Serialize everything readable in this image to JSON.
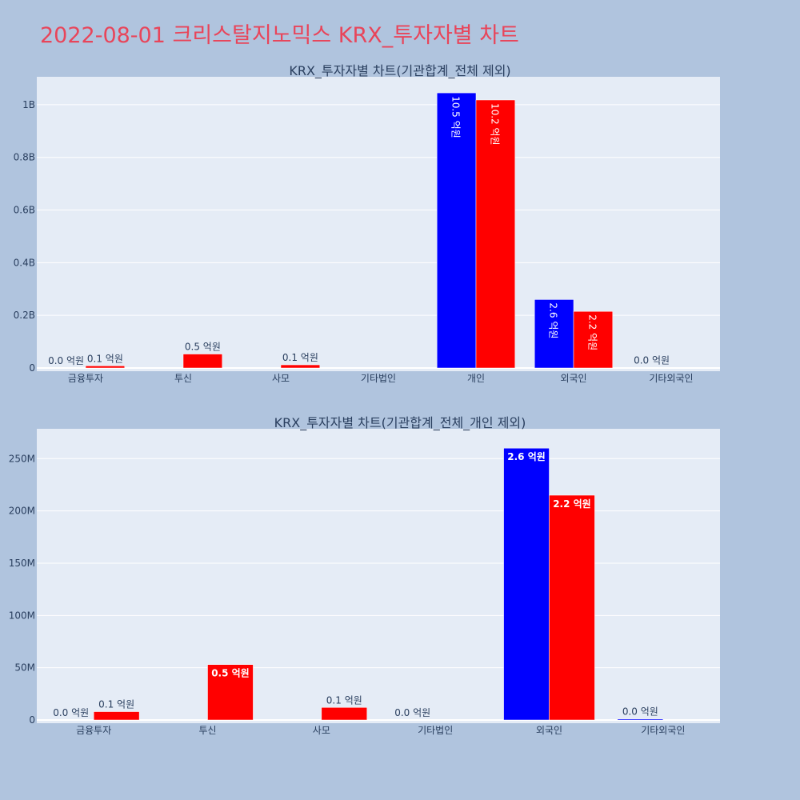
{
  "title": "2022-08-01 크리스탈지노믹스 KRX_투자자별 차트",
  "colors": {
    "buy": "#0000ff",
    "sell": "#ff0000",
    "plot_bg": "#e5ecf6",
    "page_bg": "#b0c4de"
  },
  "chart_data": [
    {
      "type": "bar",
      "title": "KRX_투자자별 차트(기관합계_전체 제외)",
      "categories": [
        "금융투자",
        "투신",
        "사모",
        "기타법인",
        "개인",
        "외국인",
        "기타외국인"
      ],
      "series": [
        {
          "color": "#0000ff",
          "values": [
            0,
            0,
            0,
            0,
            1045000000,
            260000000,
            1000000
          ]
        },
        {
          "color": "#ff0000",
          "values": [
            8000000,
            53000000,
            12000000,
            0,
            1018000000,
            215000000,
            0
          ]
        }
      ],
      "labels": [
        [
          {
            "text": "0.0 억원",
            "pos": "outside"
          },
          null,
          null,
          null,
          {
            "text": "10.5 억원",
            "pos": "inside-rot"
          },
          {
            "text": "2.6 억원",
            "pos": "inside-rot"
          },
          {
            "text": "0.0 억원",
            "pos": "outside"
          }
        ],
        [
          {
            "text": "0.1 억원",
            "pos": "outside"
          },
          {
            "text": "0.5 억원",
            "pos": "outside"
          },
          {
            "text": "0.1 억원",
            "pos": "outside"
          },
          null,
          {
            "text": "10.2 억원",
            "pos": "inside-rot"
          },
          {
            "text": "2.2 억원",
            "pos": "inside-rot"
          },
          null
        ]
      ],
      "yticks": [
        0,
        200000000,
        400000000,
        600000000,
        800000000,
        1000000000
      ],
      "ytick_labels": [
        "0",
        "0.2B",
        "0.4B",
        "0.6B",
        "0.8B",
        "1B"
      ],
      "ylim": [
        0,
        1100000000
      ],
      "grid": true
    },
    {
      "type": "bar",
      "title": "KRX_투자자별 차트(기관합계_전체_개인 제외)",
      "categories": [
        "금융투자",
        "투신",
        "사모",
        "기타법인",
        "외국인",
        "기타외국인"
      ],
      "series": [
        {
          "color": "#0000ff",
          "values": [
            0,
            0,
            0,
            0,
            260000000,
            1000000
          ]
        },
        {
          "color": "#ff0000",
          "values": [
            8000000,
            53000000,
            12000000,
            0,
            215000000,
            0
          ]
        }
      ],
      "labels": [
        [
          {
            "text": "0.0 억원",
            "pos": "outside"
          },
          null,
          null,
          {
            "text": "0.0 억원",
            "pos": "outside"
          },
          {
            "text": "2.6 억원",
            "pos": "inside"
          },
          {
            "text": "0.0 억원",
            "pos": "outside"
          }
        ],
        [
          {
            "text": "0.1 억원",
            "pos": "outside"
          },
          {
            "text": "0.5 억원",
            "pos": "inside"
          },
          {
            "text": "0.1 억원",
            "pos": "outside"
          },
          null,
          {
            "text": "2.2 억원",
            "pos": "inside"
          },
          null
        ]
      ],
      "yticks": [
        0,
        50000000,
        100000000,
        150000000,
        200000000,
        250000000
      ],
      "ytick_labels": [
        "0",
        "50M",
        "100M",
        "150M",
        "200M",
        "250M"
      ],
      "ylim": [
        0,
        277000000
      ],
      "grid": true
    }
  ]
}
